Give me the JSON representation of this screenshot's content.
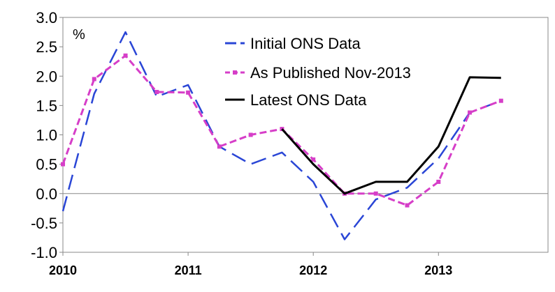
{
  "chart_data": {
    "type": "line",
    "unit_label": "%",
    "ylim": [
      -1.0,
      3.0
    ],
    "yticks": [
      "3.0",
      "2.5",
      "2.0",
      "1.5",
      "1.0",
      "0.5",
      "0.0",
      "-0.5",
      "-1.0"
    ],
    "xlim": [
      2010,
      2013.875
    ],
    "xticks": [
      "2010",
      "2011",
      "2012",
      "2013"
    ],
    "grid": false,
    "legend_position": "top-center",
    "x": [
      2010.0,
      2010.25,
      2010.5,
      2010.75,
      2011.0,
      2011.25,
      2011.5,
      2011.75,
      2012.0,
      2012.25,
      2012.5,
      2012.75,
      2013.0,
      2013.25,
      2013.5
    ],
    "series": [
      {
        "name": "Initial ONS Data",
        "color": "#2a46d6",
        "style": "dashed",
        "values": [
          -0.3,
          1.7,
          2.75,
          1.65,
          1.85,
          0.8,
          0.5,
          0.7,
          0.2,
          -0.78,
          -0.1,
          0.1,
          0.6,
          1.38,
          1.58
        ]
      },
      {
        "name": "As Published Nov-2013",
        "color": "#d63ec8",
        "style": "dashed-markers",
        "values": [
          0.5,
          1.95,
          2.35,
          1.73,
          1.72,
          0.8,
          1.0,
          1.1,
          0.58,
          0.0,
          0.0,
          -0.2,
          0.2,
          1.38,
          1.58
        ]
      },
      {
        "name": "Latest ONS Data",
        "color": "#000000",
        "style": "solid",
        "values": [
          null,
          null,
          null,
          null,
          null,
          null,
          null,
          1.1,
          0.5,
          0.0,
          0.2,
          0.2,
          0.8,
          1.98,
          1.97
        ]
      }
    ]
  }
}
